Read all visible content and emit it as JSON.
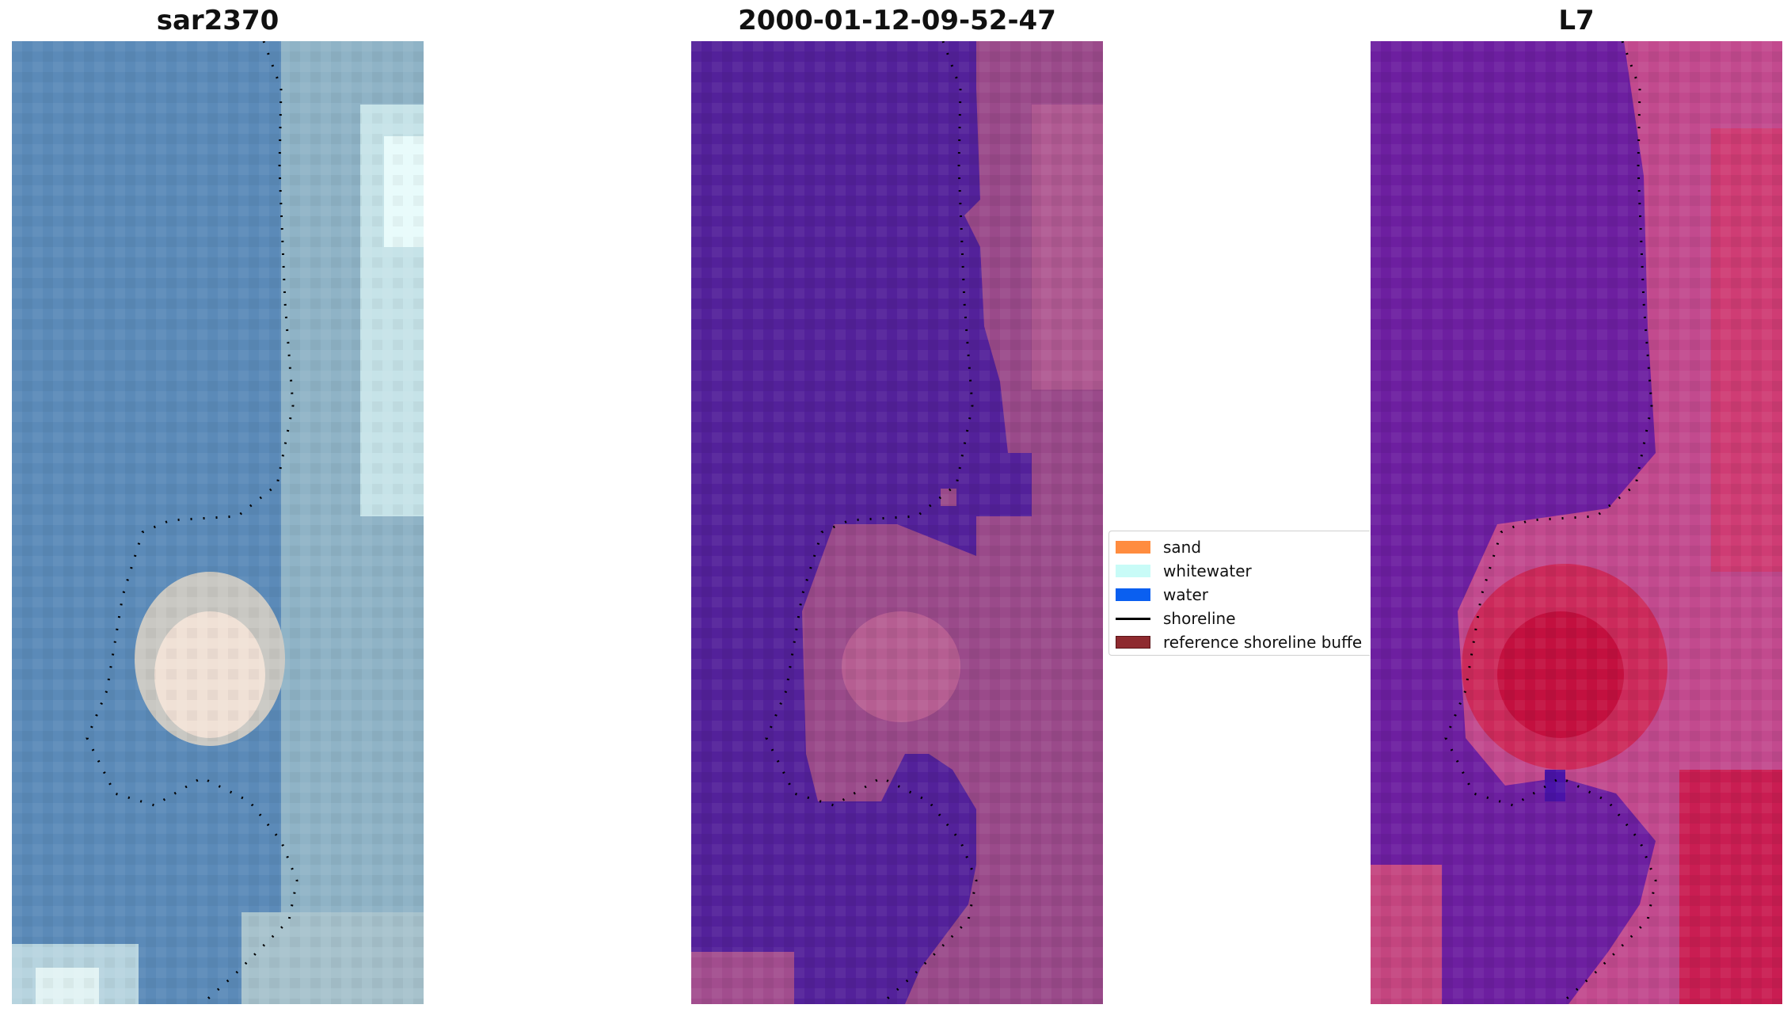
{
  "panels": [
    {
      "title": "sar2370",
      "icon": "rgb-image"
    },
    {
      "title": "2000-01-12-09-52-47",
      "icon": "classified-image"
    },
    {
      "title": "L7",
      "icon": "index-image"
    }
  ],
  "legend": {
    "items": [
      {
        "label": "sand",
        "color": "#ff8c3f",
        "kind": "patch"
      },
      {
        "label": "whitewater",
        "color": "#c8fbf7",
        "kind": "patch"
      },
      {
        "label": "water",
        "color": "#0a5ff0",
        "kind": "patch"
      },
      {
        "label": "shoreline",
        "color": "#000000",
        "kind": "line"
      },
      {
        "label": "reference shoreline buffe",
        "color": "#8e2a2f",
        "kind": "patch"
      }
    ]
  },
  "colors": {
    "water_class": "#53219a",
    "rgb_water": "#5b8ab8",
    "rgb_foam": "#e6d8cf",
    "index_low": "#5b1aa0",
    "index_high": "#c3103f"
  }
}
